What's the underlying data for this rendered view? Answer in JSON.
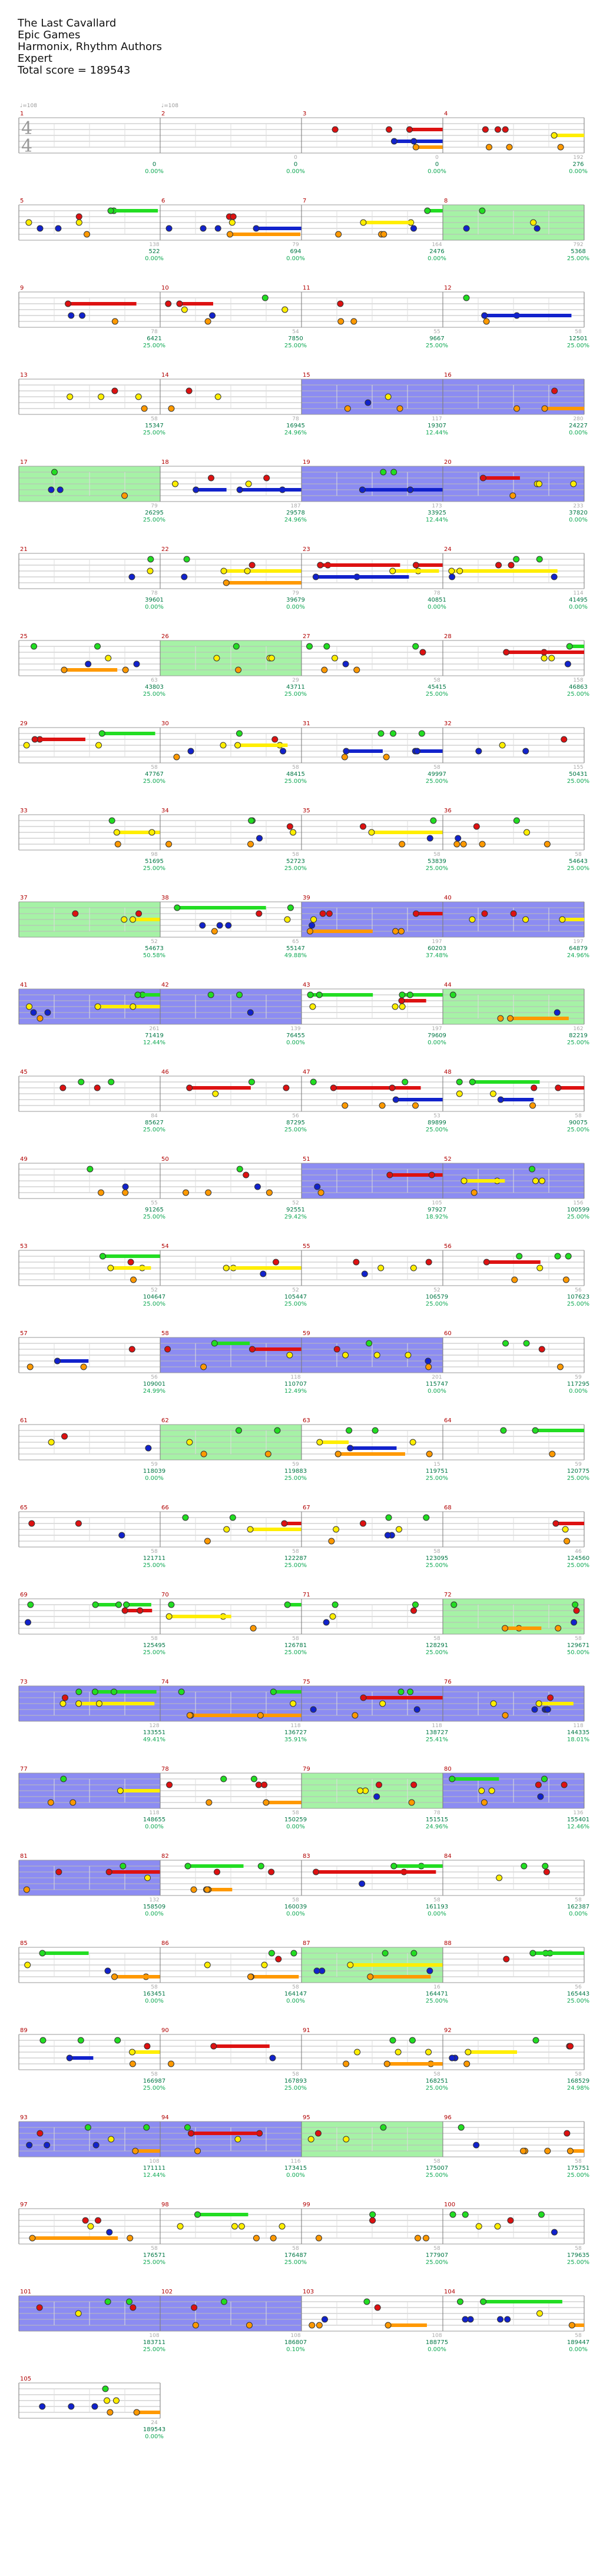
{
  "header": {
    "title": "The Last Cavallard",
    "artist": "Epic Games",
    "charter": "Harmonix, Rhythm Authors",
    "difficulty": "Expert",
    "total_score": "Total score = 189543"
  },
  "time_signature": {
    "top": "4",
    "bottom": "4"
  },
  "tempo_labels": [
    "♩=108",
    "♩=108"
  ],
  "colors": {
    "green": "#22dd22",
    "red": "#dd1111",
    "yellow": "#ffee00",
    "blue": "#1122cc",
    "orange": "#ff9900",
    "purple": "#bb00cc",
    "od_fill": "#88ee88",
    "sp_fill": "#6666ee",
    "measure_number": "#b00000",
    "score_text": "#007744",
    "percent_text": "#11aa55"
  },
  "measures": [
    {
      "n": "1",
      "score": "0",
      "pct": "0.00%"
    },
    {
      "n": "2",
      "score": "0",
      "pct": "0.00%",
      "sec": "0"
    },
    {
      "n": "3",
      "score": "0",
      "pct": "0.00%",
      "sec": "0"
    },
    {
      "n": "4",
      "score": "276",
      "pct": "0.00%",
      "sec": "192"
    },
    {
      "n": "5",
      "score": "522",
      "pct": "0.00%",
      "sec": "138"
    },
    {
      "n": "6",
      "score": "694",
      "pct": "0.00%",
      "sec": "79"
    },
    {
      "n": "7",
      "score": "2476",
      "pct": "0.00%",
      "sec": "164"
    },
    {
      "n": "8",
      "score": "5368",
      "pct": "25.00%",
      "sec": "792"
    },
    {
      "n": "9",
      "score": "6421",
      "pct": "25.00%",
      "sec": "78"
    },
    {
      "n": "10",
      "score": "7850",
      "pct": "25.00%",
      "sec": "54"
    },
    {
      "n": "11",
      "score": "9667",
      "pct": "25.00%",
      "sec": "55"
    },
    {
      "n": "12",
      "score": "12501",
      "pct": "25.00%",
      "sec": "58"
    },
    {
      "n": "13",
      "score": "15347",
      "pct": "25.00%",
      "sec": "58"
    },
    {
      "n": "14",
      "score": "16945",
      "pct": "24.96%",
      "sec": "78"
    },
    {
      "n": "15",
      "score": "19307",
      "pct": "12.44%",
      "sec": "117"
    },
    {
      "n": "16",
      "score": "24227",
      "pct": "0.00%",
      "sec": "280"
    },
    {
      "n": "17",
      "score": "26295",
      "pct": "25.00%",
      "sec": "79"
    },
    {
      "n": "18",
      "score": "29578",
      "pct": "24.96%",
      "sec": "187"
    },
    {
      "n": "19",
      "score": "33925",
      "pct": "12.44%",
      "sec": "173"
    },
    {
      "n": "20",
      "score": "37820",
      "pct": "0.00%",
      "sec": "233"
    },
    {
      "n": "21",
      "score": "39601",
      "pct": "0.00%",
      "sec": "78"
    },
    {
      "n": "22",
      "score": "39679",
      "pct": "0.00%",
      "sec": "79"
    },
    {
      "n": "23",
      "score": "40851",
      "pct": "0.00%",
      "sec": "78"
    },
    {
      "n": "24",
      "score": "41495",
      "pct": "0.00%",
      "sec": "114"
    },
    {
      "n": "25",
      "score": "43803",
      "pct": "25.00%",
      "sec": "63"
    },
    {
      "n": "26",
      "score": "43711",
      "pct": "25.00%",
      "sec": "29"
    },
    {
      "n": "27",
      "score": "45415",
      "pct": "25.00%",
      "sec": "58"
    },
    {
      "n": "28",
      "score": "46863",
      "pct": "25.00%",
      "sec": "158"
    },
    {
      "n": "29",
      "score": "47767",
      "pct": "25.00%",
      "sec": "58"
    },
    {
      "n": "30",
      "score": "48415",
      "pct": "25.00%",
      "sec": "58"
    },
    {
      "n": "31",
      "score": "49997",
      "pct": "25.00%",
      "sec": "58"
    },
    {
      "n": "32",
      "score": "50431",
      "pct": "25.00%",
      "sec": "155"
    },
    {
      "n": "33",
      "score": "51695",
      "pct": "25.00%",
      "sec": "98"
    },
    {
      "n": "34",
      "score": "52723",
      "pct": "25.00%",
      "sec": "58"
    },
    {
      "n": "35",
      "score": "53839",
      "pct": "25.00%",
      "sec": "58"
    },
    {
      "n": "36",
      "score": "54643",
      "pct": "25.00%",
      "sec": "58"
    },
    {
      "n": "37",
      "score": "54673",
      "pct": "50.58%",
      "sec": "52"
    },
    {
      "n": "38",
      "score": "55147",
      "pct": "49.88%",
      "sec": "65"
    },
    {
      "n": "39",
      "score": "60203",
      "pct": "37.48%",
      "sec": "197"
    },
    {
      "n": "40",
      "score": "64879",
      "pct": "24.96%",
      "sec": "197"
    },
    {
      "n": "41",
      "score": "71419",
      "pct": "12.44%",
      "sec": "261"
    },
    {
      "n": "42",
      "score": "76455",
      "pct": "0.00%",
      "sec": "139"
    },
    {
      "n": "43",
      "score": "79609",
      "pct": "0.00%",
      "sec": "197"
    },
    {
      "n": "44",
      "score": "82219",
      "pct": "25.00%",
      "sec": "162"
    },
    {
      "n": "45",
      "score": "85627",
      "pct": "25.00%",
      "sec": "84"
    },
    {
      "n": "46",
      "score": "87295",
      "pct": "25.00%",
      "sec": "56"
    },
    {
      "n": "47",
      "score": "89899",
      "pct": "25.00%",
      "sec": "53"
    },
    {
      "n": "48",
      "score": "90075",
      "pct": "25.00%",
      "sec": "58"
    },
    {
      "n": "49",
      "score": "91265",
      "pct": "25.00%",
      "sec": "55"
    },
    {
      "n": "50",
      "score": "92551",
      "pct": "29.42%",
      "sec": "52"
    },
    {
      "n": "51",
      "score": "97927",
      "pct": "18.92%",
      "sec": "105"
    },
    {
      "n": "52",
      "score": "100599",
      "pct": "25.00%",
      "sec": "156"
    },
    {
      "n": "53",
      "score": "104647",
      "pct": "25.00%",
      "sec": "52"
    },
    {
      "n": "54",
      "score": "105447",
      "pct": "25.00%",
      "sec": "52"
    },
    {
      "n": "55",
      "score": "106579",
      "pct": "25.00%",
      "sec": "52"
    },
    {
      "n": "56",
      "score": "107623",
      "pct": "25.00%",
      "sec": "56"
    },
    {
      "n": "57",
      "score": "109001",
      "pct": "24.99%",
      "sec": "56"
    },
    {
      "n": "58",
      "score": "110707",
      "pct": "12.49%",
      "sec": "118"
    },
    {
      "n": "59",
      "score": "115747",
      "pct": "0.00%",
      "sec": "201"
    },
    {
      "n": "60",
      "score": "117295",
      "pct": "0.00%",
      "sec": "59"
    },
    {
      "n": "61",
      "score": "118039",
      "pct": "0.00%",
      "sec": "59"
    },
    {
      "n": "62",
      "score": "119883",
      "pct": "25.00%",
      "sec": "59"
    },
    {
      "n": "63",
      "score": "119751",
      "pct": "25.00%",
      "sec": "15"
    },
    {
      "n": "64",
      "score": "120775",
      "pct": "25.00%",
      "sec": "59"
    },
    {
      "n": "65",
      "score": "121711",
      "pct": "25.00%",
      "sec": "58"
    },
    {
      "n": "66",
      "score": "122287",
      "pct": "25.00%",
      "sec": "58"
    },
    {
      "n": "67",
      "score": "123095",
      "pct": "25.00%",
      "sec": "58"
    },
    {
      "n": "68",
      "score": "124560",
      "pct": "25.00%",
      "sec": "46"
    },
    {
      "n": "69",
      "score": "125495",
      "pct": "25.00%",
      "sec": "58"
    },
    {
      "n": "70",
      "score": "126781",
      "pct": "25.00%",
      "sec": "58"
    },
    {
      "n": "71",
      "score": "128291",
      "pct": "25.00%",
      "sec": "58"
    },
    {
      "n": "72",
      "score": "129671",
      "pct": "50.00%",
      "sec": "58"
    },
    {
      "n": "73",
      "score": "133551",
      "pct": "49.41%",
      "sec": "128"
    },
    {
      "n": "74",
      "score": "136727",
      "pct": "35.91%",
      "sec": "118"
    },
    {
      "n": "75",
      "score": "138727",
      "pct": "25.41%",
      "sec": "118"
    },
    {
      "n": "76",
      "score": "144335",
      "pct": "18.01%",
      "sec": "118"
    },
    {
      "n": "77",
      "score": "148655",
      "pct": "0.00%",
      "sec": "118"
    },
    {
      "n": "78",
      "score": "150259",
      "pct": "0.00%",
      "sec": "58"
    },
    {
      "n": "79",
      "score": "151515",
      "pct": "24.96%",
      "sec": "78"
    },
    {
      "n": "80",
      "score": "155401",
      "pct": "12.46%",
      "sec": "136"
    },
    {
      "n": "81",
      "score": "158509",
      "pct": "0.00%",
      "sec": "132"
    },
    {
      "n": "82",
      "score": "160039",
      "pct": "0.00%",
      "sec": "58"
    },
    {
      "n": "83",
      "score": "161193",
      "pct": "0.00%",
      "sec": "58"
    },
    {
      "n": "84",
      "score": "162387",
      "pct": "0.00%",
      "sec": "58"
    },
    {
      "n": "85",
      "score": "163451",
      "pct": "0.00%",
      "sec": "58"
    },
    {
      "n": "86",
      "score": "164147",
      "pct": "0.00%",
      "sec": "58"
    },
    {
      "n": "87",
      "score": "164471",
      "pct": "25.00%",
      "sec": "16"
    },
    {
      "n": "88",
      "score": "165443",
      "pct": "25.00%",
      "sec": "56"
    },
    {
      "n": "89",
      "score": "166987",
      "pct": "25.00%",
      "sec": "58"
    },
    {
      "n": "90",
      "score": "167893",
      "pct": "25.00%",
      "sec": "58"
    },
    {
      "n": "91",
      "score": "168251",
      "pct": "25.00%",
      "sec": "58"
    },
    {
      "n": "92",
      "score": "168529",
      "pct": "24.98%",
      "sec": "58"
    },
    {
      "n": "93",
      "score": "171111",
      "pct": "12.44%",
      "sec": "108"
    },
    {
      "n": "94",
      "score": "173415",
      "pct": "0.00%",
      "sec": "116"
    },
    {
      "n": "95",
      "score": "175007",
      "pct": "25.00%",
      "sec": "58"
    },
    {
      "n": "96",
      "score": "175751",
      "pct": "25.00%",
      "sec": "58"
    },
    {
      "n": "97",
      "score": "176571",
      "pct": "25.00%",
      "sec": "58"
    },
    {
      "n": "98",
      "score": "176487",
      "pct": "25.00%",
      "sec": "58"
    },
    {
      "n": "99",
      "score": "177907",
      "pct": "25.00%",
      "sec": "58"
    },
    {
      "n": "100",
      "score": "179635",
      "pct": "25.00%",
      "sec": "58"
    },
    {
      "n": "101",
      "score": "183711",
      "pct": "25.00%",
      "sec": "108"
    },
    {
      "n": "102",
      "score": "186807",
      "pct": "0.10%",
      "sec": "108"
    },
    {
      "n": "103",
      "score": "188775",
      "pct": "0.00%",
      "sec": "108"
    },
    {
      "n": "104",
      "score": "189447",
      "pct": "0.00%",
      "sec": "58"
    },
    {
      "n": "105",
      "score": "189543",
      "pct": "0.00%",
      "sec": "24"
    }
  ]
}
